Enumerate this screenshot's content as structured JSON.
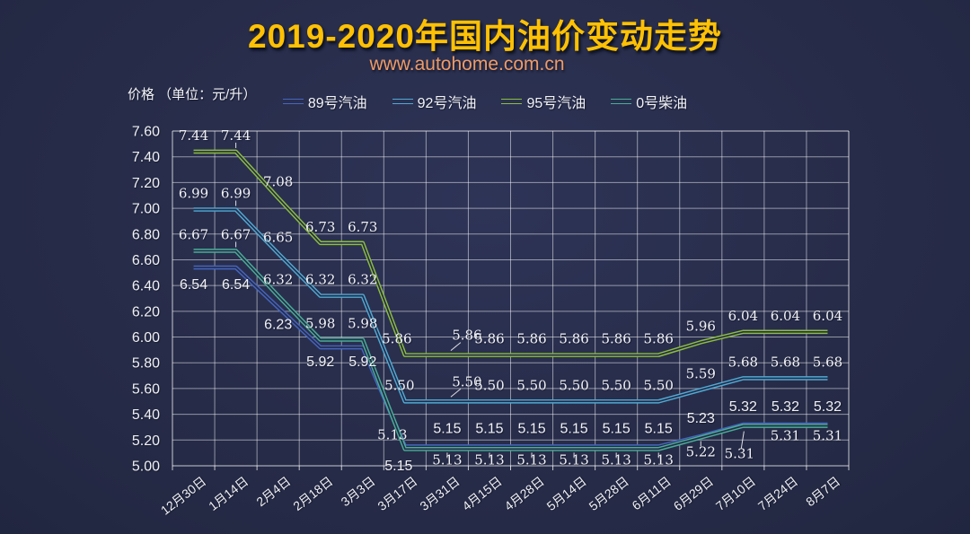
{
  "header": {
    "title": "2019-2020年国内油价变动走势",
    "subtitle": "www.autohome.com.cn"
  },
  "axis_note": "价格 （单位：元/升）",
  "colors": {
    "background": "#272C49",
    "title": "#FFC103",
    "subtitle": "#EE9B68",
    "grid": "rgba(255,255,255,0.5)",
    "axis_border": "rgba(255,255,255,0.75)",
    "label_text": "#F0F1F5"
  },
  "chart_data": {
    "type": "line",
    "title": "2019-2020年国内油价变动走势",
    "unit_label": "价格 （单位：元/升）",
    "legend_position": "top",
    "grid": true,
    "categories": [
      "12月30日",
      "1月14日",
      "2月4日",
      "2月18日",
      "3月3日",
      "3月17日",
      "3月31日",
      "4月15日",
      "4月28日",
      "5月14日",
      "5月28日",
      "6月11日",
      "6月29日",
      "7月10日",
      "7月24日",
      "8月7日"
    ],
    "series": [
      {
        "name": "89号汽油",
        "color": "#4565BE",
        "values": [
          6.54,
          6.54,
          6.23,
          5.92,
          5.92,
          5.15,
          5.15,
          5.15,
          5.15,
          5.15,
          5.15,
          5.15,
          5.23,
          5.32,
          5.32,
          5.32
        ]
      },
      {
        "name": "92号汽油",
        "color": "#4FAAD4",
        "values": [
          6.99,
          6.99,
          6.65,
          6.32,
          6.32,
          5.5,
          5.5,
          5.5,
          5.5,
          5.5,
          5.5,
          5.5,
          5.59,
          5.68,
          5.68,
          5.68
        ]
      },
      {
        "name": "95号汽油",
        "color": "#8CBE3F",
        "values": [
          7.44,
          7.44,
          7.08,
          6.73,
          6.73,
          5.86,
          5.86,
          5.86,
          5.86,
          5.86,
          5.86,
          5.86,
          5.96,
          6.04,
          6.04,
          6.04
        ]
      },
      {
        "name": "0号柴油",
        "color": "#49AE97",
        "values": [
          6.67,
          6.67,
          6.32,
          5.98,
          5.98,
          5.13,
          5.13,
          5.13,
          5.13,
          5.13,
          5.13,
          5.13,
          5.22,
          5.31,
          5.31,
          5.31
        ]
      }
    ],
    "ylim": [
      5.0,
      7.6
    ],
    "ytick_step": 0.2
  }
}
